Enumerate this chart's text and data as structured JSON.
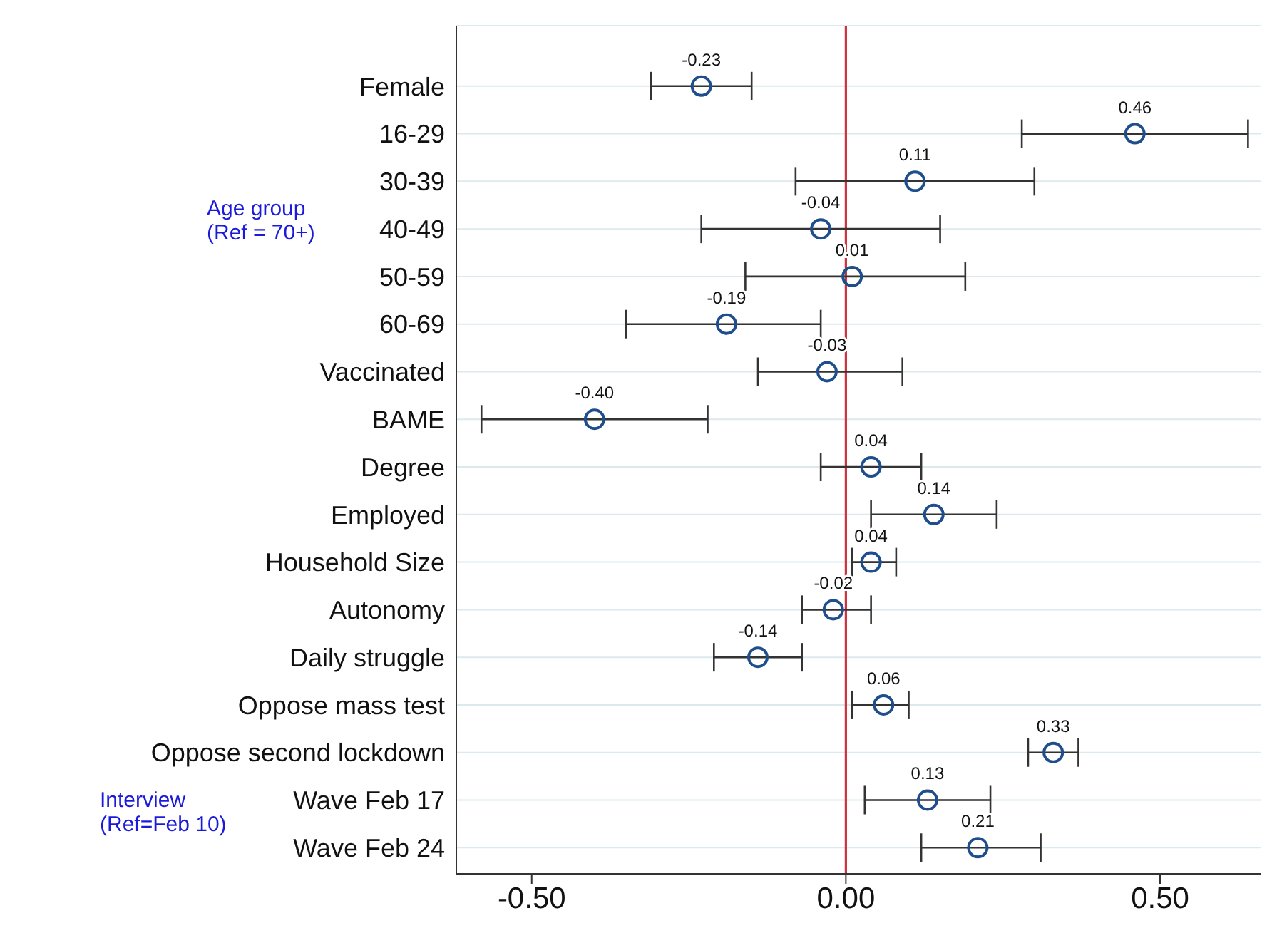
{
  "chart_data": {
    "type": "scatter",
    "orientation": "horizontal",
    "categories": [
      "Female",
      "16-29",
      "30-39",
      "40-49",
      "50-59",
      "60-69",
      "Vaccinated",
      "BAME",
      "Degree",
      "Employed",
      "Household Size",
      "Autonomy",
      "Daily struggle",
      "Oppose mass test",
      "Oppose second lockdown",
      "Wave Feb 17",
      "Wave Feb 24"
    ],
    "values": [
      -0.23,
      0.46,
      0.11,
      -0.04,
      0.01,
      -0.19,
      -0.03,
      -0.4,
      0.04,
      0.14,
      0.04,
      -0.02,
      -0.14,
      0.06,
      0.33,
      0.13,
      0.21
    ],
    "value_labels": [
      "-0.23",
      "0.46",
      "0.11",
      "-0.04",
      "0.01",
      "-0.19",
      "-0.03",
      "-0.40",
      "0.04",
      "0.14",
      "0.04",
      "-0.02",
      "-0.14",
      "0.06",
      "0.33",
      "0.13",
      "0.21"
    ],
    "errors": [
      [
        -0.31,
        -0.15
      ],
      [
        0.28,
        0.64
      ],
      [
        -0.08,
        0.3
      ],
      [
        -0.23,
        0.15
      ],
      [
        -0.16,
        0.19
      ],
      [
        -0.35,
        -0.04
      ],
      [
        -0.14,
        0.09
      ],
      [
        -0.58,
        -0.22
      ],
      [
        -0.04,
        0.12
      ],
      [
        0.04,
        0.24
      ],
      [
        0.01,
        0.08
      ],
      [
        -0.07,
        0.04
      ],
      [
        -0.21,
        -0.07
      ],
      [
        0.01,
        0.1
      ],
      [
        0.29,
        0.37
      ],
      [
        0.03,
        0.23
      ],
      [
        0.12,
        0.31
      ]
    ],
    "color": "#1f4e8c",
    "marker": "circle",
    "xlim": [
      -0.62,
      0.66
    ],
    "xticks": [
      {
        "value": -0.5,
        "label": "-0.50"
      },
      {
        "value": 0,
        "label": "0.00"
      },
      {
        "value": 0.5,
        "label": "0.50"
      }
    ],
    "ref_lines": [
      {
        "axis": "x",
        "value": 0,
        "label": null,
        "color": "#d0313f"
      }
    ],
    "grid": "y",
    "legend": false,
    "annotations": [
      "Age group\n(Ref = 70+)",
      "Interview\n(Ref=Feb 10)"
    ]
  }
}
